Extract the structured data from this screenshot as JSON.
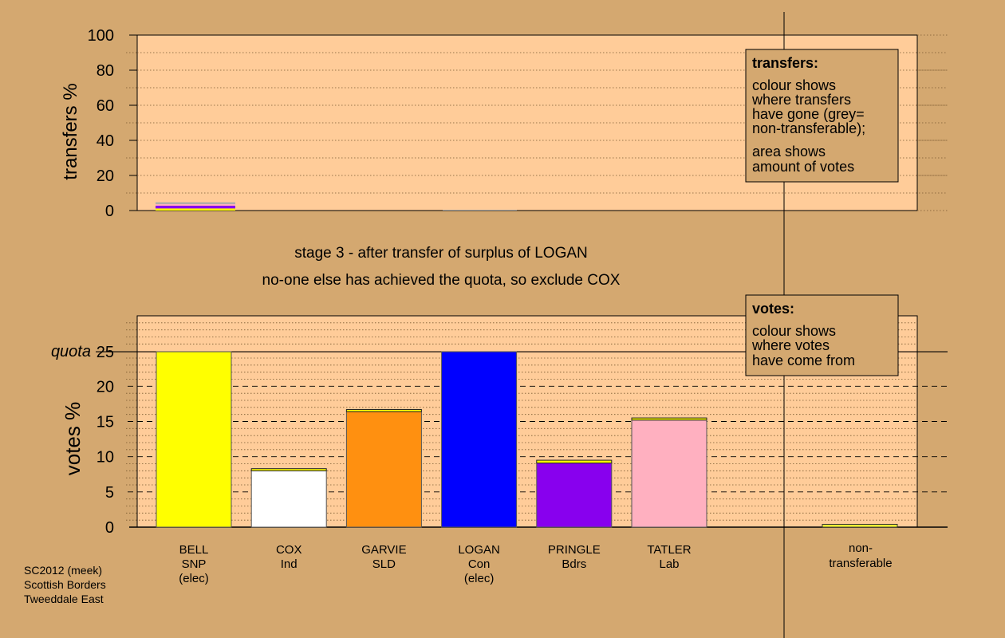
{
  "colors": {
    "background": "#d4a870",
    "panel": "#ffcc99",
    "legend_box": "#d4a870"
  },
  "chart_data": [
    {
      "type": "bar",
      "panel": "transfers",
      "ylabel": "transfers %",
      "ylim": [
        0,
        100
      ],
      "yticks": [
        0,
        20,
        40,
        60,
        80,
        100
      ],
      "bars": [
        {
          "from": "LOGAN",
          "segments": [
            {
              "color": "#ffff00",
              "value": 1.2
            },
            {
              "color": "#8800ee",
              "value": 1.6
            },
            {
              "color": "#ffb0c0",
              "value": 0.9
            },
            {
              "color": "#aaaaaa",
              "value": 1.0
            }
          ]
        }
      ],
      "legend": {
        "title": "transfers:",
        "lines": [
          "colour shows",
          "where transfers",
          "have gone (grey=",
          "non-transferable);"
        ],
        "lines2": [
          "area shows",
          "amount of votes"
        ]
      }
    },
    {
      "type": "bar",
      "panel": "votes",
      "ylabel": "votes %",
      "ylim": [
        0,
        30
      ],
      "yticks": [
        0,
        5,
        10,
        15,
        20,
        25
      ],
      "quota": {
        "label": "quota",
        "value": 24.9
      },
      "categories": [
        {
          "lines": [
            "BELL",
            "SNP",
            "(elec)"
          ],
          "color": "#ffff00",
          "value": 24.9,
          "transfer": 0
        },
        {
          "lines": [
            "COX",
            "Ind"
          ],
          "color": "#ffffff",
          "value": 8.0,
          "transfer": 0.3
        },
        {
          "lines": [
            "GARVIE",
            "SLD"
          ],
          "color": "#ff9010",
          "value": 16.4,
          "transfer": 0.3
        },
        {
          "lines": [
            "LOGAN",
            "Con",
            "(elec)"
          ],
          "color": "#0000ff",
          "value": 24.9,
          "transfer": 0
        },
        {
          "lines": [
            "PRINGLE",
            "Bdrs"
          ],
          "color": "#8800ee",
          "value": 9.1,
          "transfer": 0.4
        },
        {
          "lines": [
            "TATLER",
            "Lab"
          ],
          "color": "#ffb0c0",
          "value": 15.2,
          "transfer": 0.3
        }
      ],
      "nontransferable": {
        "lines": [
          "non-",
          "transferable"
        ],
        "value": 0.4,
        "color": "#ffff33"
      },
      "legend": {
        "title": "votes:",
        "lines": [
          "colour shows",
          "where votes",
          "have come from"
        ]
      }
    }
  ],
  "stage": {
    "line1": "stage 3 - after transfer of surplus of LOGAN",
    "line2": "no-one else has achieved the quota, so exclude COX"
  },
  "footer": [
    "SC2012 (meek)",
    "Scottish Borders",
    "Tweeddale East"
  ]
}
